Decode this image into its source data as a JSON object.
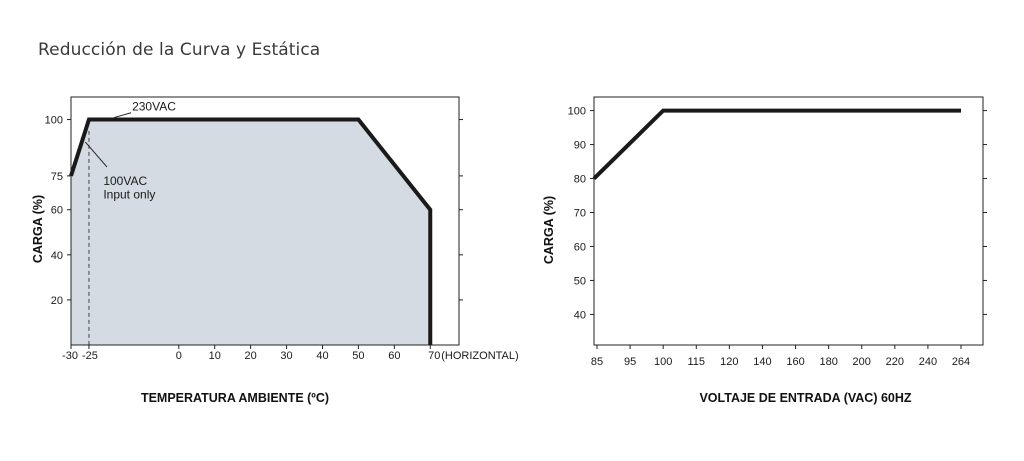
{
  "page": {
    "title": "Reducción de la Curva y Estática"
  },
  "chart_data": [
    {
      "type": "area",
      "title": "",
      "xlabel": "TEMPERATURA AMBIENTE (ºC)",
      "ylabel": "CARGA (%)",
      "x_unit_label": "(HORIZONTAL)",
      "xlim": [
        -30,
        78
      ],
      "ylim": [
        0,
        110
      ],
      "x_ticks": [
        -30,
        -25,
        0,
        10,
        20,
        30,
        40,
        50,
        60,
        70
      ],
      "y_ticks": [
        20,
        40,
        60,
        75,
        100
      ],
      "series": [
        {
          "values": [
            [
              -30,
              75
            ],
            [
              -25,
              100
            ],
            [
              50,
              100
            ],
            [
              70,
              60
            ],
            [
              70,
              0
            ]
          ]
        }
      ],
      "annotations": [
        {
          "text": "230VAC",
          "x": -13,
          "y": 104
        },
        {
          "text": "100VAC",
          "x": -21,
          "y": 71
        },
        {
          "text": "Input only",
          "x": -21,
          "y": 65
        }
      ],
      "reference_lines": [
        {
          "x": -25
        }
      ],
      "fill_color": "#d4dbe3",
      "line_color": "#1a1a1a"
    },
    {
      "type": "line",
      "title": "",
      "xlabel": "VOLTAJE DE ENTRADA (VAC) 60HZ",
      "ylabel": "CARGA (%)",
      "x_ticks": [
        "85",
        "95",
        "100",
        "115",
        "120",
        "140",
        "160",
        "180",
        "200",
        "220",
        "240",
        "264"
      ],
      "y_ticks": [
        40,
        50,
        60,
        70,
        80,
        90,
        100
      ],
      "ylim": [
        31,
        104
      ],
      "series": [
        {
          "values": [
            [
              "85",
              80
            ],
            [
              "100",
              100
            ],
            [
              "264",
              100
            ]
          ]
        }
      ],
      "line_color": "#1a1a1a"
    }
  ]
}
